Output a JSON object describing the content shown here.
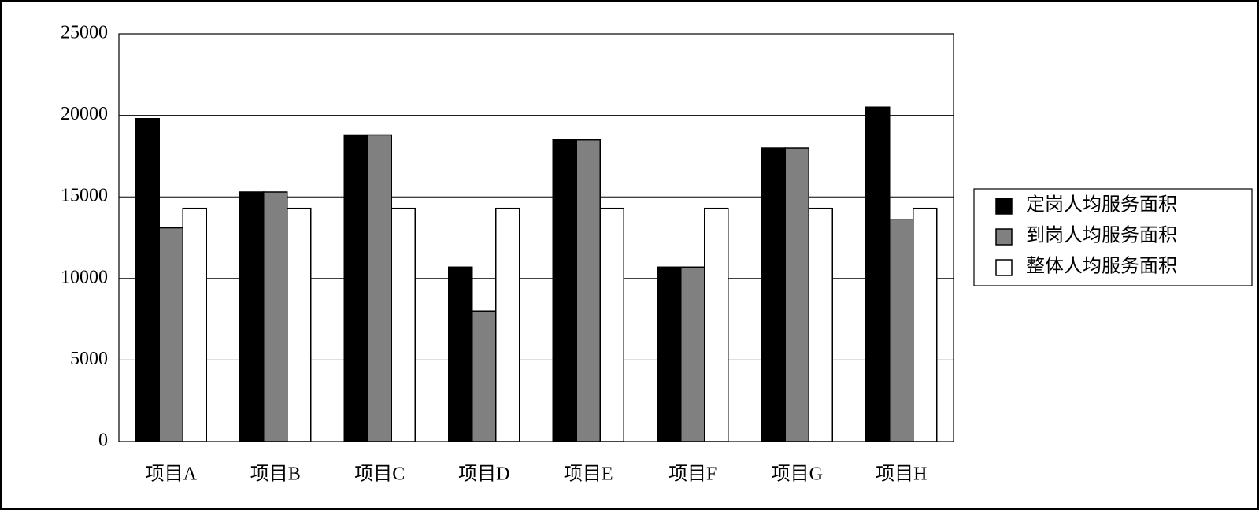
{
  "chart_data": {
    "type": "bar",
    "categories": [
      "项目A",
      "项目B",
      "项目C",
      "项目D",
      "项目E",
      "项目F",
      "项目G",
      "项目H"
    ],
    "series": [
      {
        "name": "定岗人均服务面积",
        "color": "#000000",
        "values": [
          19800,
          15300,
          18800,
          10700,
          18500,
          10700,
          18000,
          20500
        ]
      },
      {
        "name": "到岗人均服务面积",
        "color": "#808080",
        "values": [
          13100,
          15300,
          18800,
          8000,
          18500,
          10700,
          18000,
          13600
        ]
      },
      {
        "name": "整体人均服务面积",
        "color": "#ffffff",
        "values": [
          14300,
          14300,
          14300,
          14300,
          14300,
          14300,
          14300,
          14300
        ]
      }
    ],
    "ylim": [
      0,
      25000
    ],
    "yticks": [
      0,
      5000,
      10000,
      15000,
      20000,
      25000
    ],
    "grid": true,
    "legend": "right"
  }
}
